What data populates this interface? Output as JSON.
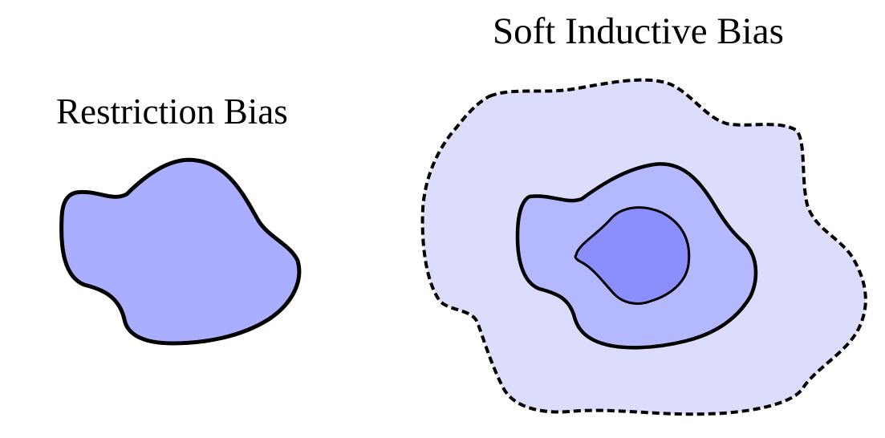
{
  "labels": {
    "restriction": "Restriction Bias",
    "soft_inductive": "Soft Inductive Bias"
  },
  "colors": {
    "restriction_fill": "#aaaefe",
    "outer_region_fill": "#dcdcfc",
    "middle_region_fill": "#b4b8fe",
    "inner_region_fill": "#8b8ffe",
    "stroke": "#000000",
    "background": "#ffffff"
  }
}
